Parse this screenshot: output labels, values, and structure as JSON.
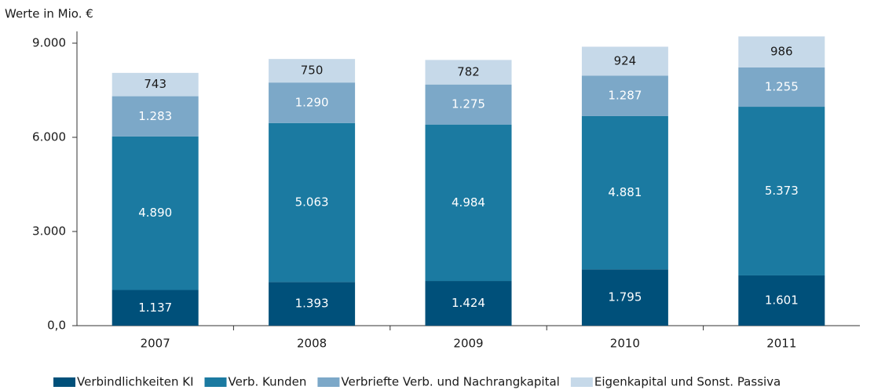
{
  "chart_data": {
    "type": "stacked_bar",
    "title": "Werte in Mio. €",
    "categories": [
      "2007",
      "2008",
      "2009",
      "2010",
      "2011"
    ],
    "series": [
      {
        "name": "Verbindlichkeiten KI",
        "color": "#00507a",
        "label_color": "#ffffff",
        "values": [
          1137,
          1393,
          1424,
          1795,
          1601
        ],
        "value_labels": [
          "1.137",
          "1.393",
          "1.424",
          "1.795",
          "1.601"
        ]
      },
      {
        "name": "Verb. Kunden",
        "color": "#1b7aa1",
        "label_color": "#ffffff",
        "values": [
          4890,
          5063,
          4984,
          4881,
          5373
        ],
        "value_labels": [
          "4.890",
          "5.063",
          "4.984",
          "4.881",
          "5.373"
        ]
      },
      {
        "name": "Verbriefte Verb. und Nachrangkapital",
        "color": "#7ca8c8",
        "label_color": "#ffffff",
        "values": [
          1283,
          1290,
          1275,
          1287,
          1255
        ],
        "value_labels": [
          "1.283",
          "1.290",
          "1.275",
          "1.287",
          "1.255"
        ]
      },
      {
        "name": "Eigenkapital und Sonst. Passiva",
        "color": "#c6d9e9",
        "label_color": "#1a1a1a",
        "values": [
          743,
          750,
          782,
          924,
          986
        ]
      }
    ],
    "ylim": [
      0,
      9375
    ],
    "yticks": [
      {
        "value": 0,
        "label": "0,0"
      },
      {
        "value": 3000,
        "label": "3.000"
      },
      {
        "value": 6000,
        "label": "6.000"
      },
      {
        "value": 9000,
        "label": "9.000"
      }
    ]
  }
}
